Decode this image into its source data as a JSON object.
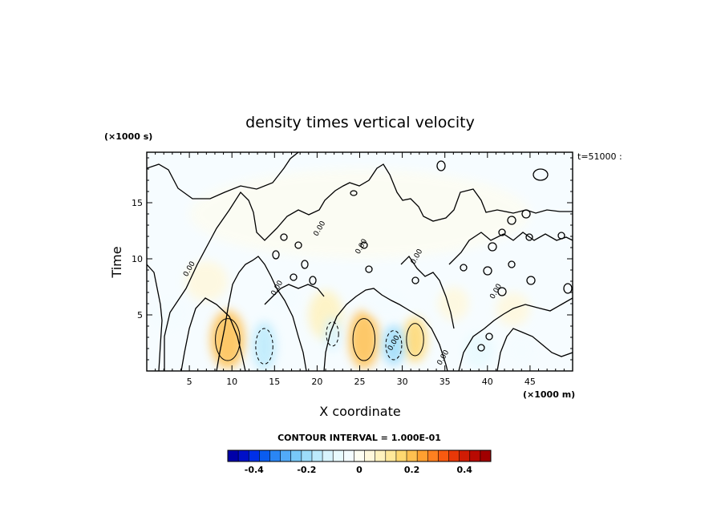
{
  "chart_data": {
    "type": "heatmap",
    "title": "density times vertical velocity",
    "xlabel": "X coordinate",
    "ylabel": "Time",
    "x_unit_label": "(×1000 m)",
    "y_unit_label": "(×1000 s)",
    "corner_label": "t=51000 :",
    "xlim": [
      0,
      50
    ],
    "ylim": [
      0,
      19.5
    ],
    "x_ticks": [
      5,
      10,
      15,
      20,
      25,
      30,
      35,
      40,
      45
    ],
    "x_tick_labels": [
      "5",
      "10",
      "15",
      "20",
      "25",
      "30",
      "35",
      "40",
      "45"
    ],
    "y_ticks": [
      5,
      10,
      15
    ],
    "y_tick_labels": [
      "5",
      "10",
      "15"
    ],
    "contour_labels": [
      {
        "text": "0.00",
        "x": 5.2,
        "y": 9.0
      },
      {
        "text": "0.00",
        "x": 15.5,
        "y": 7.3
      },
      {
        "text": "0.00",
        "x": 20.5,
        "y": 12.6
      },
      {
        "text": "0.00",
        "x": 25.4,
        "y": 11.0
      },
      {
        "text": "0.00",
        "x": 31.9,
        "y": 10.1
      },
      {
        "text": "0.00",
        "x": 29.2,
        "y": 2.4
      },
      {
        "text": "0.00",
        "x": 35.0,
        "y": 1.1
      },
      {
        "text": "0.00",
        "x": 41.2,
        "y": 7.0
      }
    ],
    "features": [
      {
        "kind": "positive",
        "x": 9.5,
        "y": 2.8,
        "rx": 2.0,
        "ry": 2.6,
        "value": 0.2
      },
      {
        "kind": "positive",
        "x": 25.5,
        "y": 2.8,
        "rx": 1.8,
        "ry": 2.6,
        "value": 0.2
      },
      {
        "kind": "positive",
        "x": 31.5,
        "y": 2.8,
        "rx": 1.4,
        "ry": 2.0,
        "value": 0.15
      },
      {
        "kind": "positive",
        "x": 21.0,
        "y": 5.0,
        "rx": 2.0,
        "ry": 2.2,
        "value": 0.08
      },
      {
        "kind": "positive",
        "x": 7.0,
        "y": 8.0,
        "rx": 2.5,
        "ry": 1.8,
        "value": 0.05
      },
      {
        "kind": "positive",
        "x": 36.0,
        "y": 6.0,
        "rx": 1.8,
        "ry": 1.5,
        "value": 0.05
      },
      {
        "kind": "positive",
        "x": 43.0,
        "y": 5.5,
        "rx": 2.0,
        "ry": 1.5,
        "value": 0.05
      },
      {
        "kind": "negative",
        "x": 13.8,
        "y": 2.2,
        "rx": 1.4,
        "ry": 2.2,
        "value": -0.15
      },
      {
        "kind": "negative",
        "x": 21.8,
        "y": 3.3,
        "rx": 1.0,
        "ry": 1.5,
        "value": -0.12
      },
      {
        "kind": "negative",
        "x": 29.0,
        "y": 2.3,
        "rx": 1.3,
        "ry": 1.8,
        "value": -0.2
      },
      {
        "kind": "negative",
        "x": 16.0,
        "y": 6.5,
        "rx": 2.0,
        "ry": 1.2,
        "value": -0.05
      },
      {
        "kind": "negative",
        "x": 28.0,
        "y": 6.0,
        "rx": 2.5,
        "ry": 1.2,
        "value": -0.05
      },
      {
        "kind": "negative",
        "x": 2.5,
        "y": 5.0,
        "rx": 2.5,
        "ry": 1.5,
        "value": -0.05
      },
      {
        "kind": "negative",
        "x": 39.0,
        "y": 1.8,
        "rx": 1.8,
        "ry": 1.6,
        "value": -0.08
      },
      {
        "kind": "negative",
        "x": 44.0,
        "y": 1.8,
        "rx": 1.8,
        "ry": 1.4,
        "value": -0.05
      },
      {
        "kind": "negative",
        "x": 25.0,
        "y": 14.0,
        "rx": 20.0,
        "ry": 4.0,
        "value": -0.02
      }
    ],
    "colorbar": {
      "label": "CONTOUR INTERVAL = 1.000E-01",
      "vmin": -0.5,
      "vmax": 0.5,
      "ticks": [
        -0.4,
        -0.2,
        0,
        0.2,
        0.4
      ],
      "tick_labels": [
        "-0.4",
        "-0.2",
        "0",
        "0.2",
        "0.4"
      ],
      "colors": [
        "#0000a8",
        "#0010c8",
        "#0030e8",
        "#0a5cf0",
        "#2a86f4",
        "#52aaf8",
        "#78c8f8",
        "#9cdcfa",
        "#bceafc",
        "#d8f4fe",
        "#e8fafe",
        "#f4fcff",
        "#fdfdf2",
        "#fff8dc",
        "#fff2be",
        "#ffe89a",
        "#ffd870",
        "#ffc050",
        "#ffa030",
        "#ff8020",
        "#f85a10",
        "#e83808",
        "#d01c04",
        "#b80a02",
        "#a00000"
      ]
    }
  }
}
